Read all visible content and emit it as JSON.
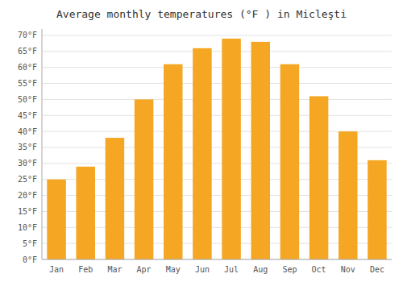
{
  "chart_data": {
    "type": "bar",
    "title": "Average monthly temperatures (°F ) in Micleşti",
    "categories": [
      "Jan",
      "Feb",
      "Mar",
      "Apr",
      "May",
      "Jun",
      "Jul",
      "Aug",
      "Sep",
      "Oct",
      "Nov",
      "Dec"
    ],
    "values": [
      25,
      29,
      38,
      50,
      61,
      66,
      69,
      68,
      61,
      51,
      40,
      31
    ],
    "color": "#F5A623",
    "ylim": [
      0,
      72
    ],
    "yticks": [
      {
        "value": 0,
        "label": "0°F"
      },
      {
        "value": 5,
        "label": "5°F"
      },
      {
        "value": 10,
        "label": "10°F"
      },
      {
        "value": 15,
        "label": "15°F"
      },
      {
        "value": 20,
        "label": "20°F"
      },
      {
        "value": 25,
        "label": "25°F"
      },
      {
        "value": 30,
        "label": "30°F"
      },
      {
        "value": 35,
        "label": "35°F"
      },
      {
        "value": 40,
        "label": "40°F"
      },
      {
        "value": 45,
        "label": "45°F"
      },
      {
        "value": 50,
        "label": "50°F"
      },
      {
        "value": 55,
        "label": "55°F"
      },
      {
        "value": 60,
        "label": "60°F"
      },
      {
        "value": 65,
        "label": "65°F"
      },
      {
        "value": 70,
        "label": "70°F"
      }
    ],
    "grid": true
  }
}
